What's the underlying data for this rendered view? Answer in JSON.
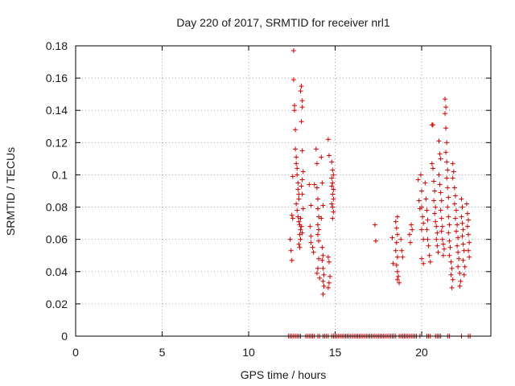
{
  "chart_data": {
    "type": "scatter",
    "title": "Day 220 of 2017, SRMTID for receiver nrl1",
    "xlabel": "GPS time / hours",
    "ylabel": "SRMTID / TECUs",
    "xlim": [
      0,
      24
    ],
    "ylim": [
      0,
      0.18
    ],
    "xticks": [
      0,
      5,
      10,
      15,
      20
    ],
    "yticks": [
      0,
      0.02,
      0.04,
      0.06,
      0.08,
      0.1,
      0.12,
      0.14,
      0.16,
      0.18
    ],
    "xtick_labels": [
      "0",
      "5",
      "10",
      "15",
      "20"
    ],
    "ytick_labels": [
      "0",
      "0.02",
      "0.04",
      "0.06",
      "0.08",
      "0.1",
      "0.12",
      "0.14",
      "0.16",
      "0.18"
    ],
    "grid": true,
    "marker": "+",
    "color": "#d00000",
    "series": [
      {
        "name": "SRMTID",
        "points": [
          [
            12.4,
            0.06
          ],
          [
            12.45,
            0.053
          ],
          [
            12.5,
            0.047
          ],
          [
            12.5,
            0.075
          ],
          [
            12.55,
            0.073
          ],
          [
            12.55,
            0.099
          ],
          [
            12.6,
            0.177
          ],
          [
            12.6,
            0.159
          ],
          [
            12.65,
            0.143
          ],
          [
            12.65,
            0.14
          ],
          [
            12.7,
            0.128
          ],
          [
            12.7,
            0.116
          ],
          [
            12.75,
            0.111
          ],
          [
            12.75,
            0.107
          ],
          [
            12.8,
            0.104
          ],
          [
            12.8,
            0.1
          ],
          [
            12.85,
            0.095
          ],
          [
            12.85,
            0.091
          ],
          [
            12.9,
            0.088
          ],
          [
            12.9,
            0.085
          ],
          [
            12.75,
            0.082
          ],
          [
            12.8,
            0.078
          ],
          [
            12.85,
            0.074
          ],
          [
            12.9,
            0.071
          ],
          [
            12.95,
            0.069
          ],
          [
            13.0,
            0.066
          ],
          [
            12.95,
            0.063
          ],
          [
            13.0,
            0.06
          ],
          [
            12.9,
            0.057
          ],
          [
            12.95,
            0.055
          ],
          [
            13.0,
            0.152
          ],
          [
            13.05,
            0.155
          ],
          [
            13.1,
            0.146
          ],
          [
            13.1,
            0.142
          ],
          [
            13.05,
            0.133
          ],
          [
            13.1,
            0.115
          ],
          [
            13.15,
            0.102
          ],
          [
            13.1,
            0.097
          ],
          [
            13.05,
            0.093
          ],
          [
            13.1,
            0.088
          ],
          [
            13.15,
            0.079
          ],
          [
            13.0,
            0.073
          ],
          [
            13.05,
            0.068
          ],
          [
            13.1,
            0.064
          ],
          [
            13.5,
            0.094
          ],
          [
            13.6,
            0.081
          ],
          [
            13.55,
            0.068
          ],
          [
            13.6,
            0.062
          ],
          [
            13.6,
            0.058
          ],
          [
            13.7,
            0.055
          ],
          [
            13.75,
            0.052
          ],
          [
            13.8,
            0.094
          ],
          [
            13.9,
            0.116
          ],
          [
            13.95,
            0.107
          ],
          [
            13.95,
            0.092
          ],
          [
            14.0,
            0.085
          ],
          [
            14.0,
            0.079
          ],
          [
            14.05,
            0.074
          ],
          [
            14.0,
            0.069
          ],
          [
            14.05,
            0.066
          ],
          [
            14.0,
            0.063
          ],
          [
            14.05,
            0.059
          ],
          [
            14.05,
            0.048
          ],
          [
            14.0,
            0.042
          ],
          [
            13.95,
            0.039
          ],
          [
            14.1,
            0.036
          ],
          [
            14.2,
            0.111
          ],
          [
            14.25,
            0.095
          ],
          [
            14.3,
            0.081
          ],
          [
            14.2,
            0.073
          ],
          [
            14.25,
            0.055
          ],
          [
            14.3,
            0.05
          ],
          [
            14.25,
            0.047
          ],
          [
            14.3,
            0.042
          ],
          [
            14.35,
            0.038
          ],
          [
            14.3,
            0.034
          ],
          [
            14.35,
            0.031
          ],
          [
            14.3,
            0.026
          ],
          [
            14.6,
            0.122
          ],
          [
            14.65,
            0.112
          ],
          [
            14.6,
            0.049
          ],
          [
            14.65,
            0.046
          ],
          [
            14.7,
            0.037
          ],
          [
            14.65,
            0.033
          ],
          [
            14.6,
            0.03
          ],
          [
            14.8,
            0.108
          ],
          [
            14.85,
            0.103
          ],
          [
            14.8,
            0.098
          ],
          [
            14.85,
            0.095
          ],
          [
            14.9,
            0.091
          ],
          [
            14.85,
            0.088
          ],
          [
            14.9,
            0.085
          ],
          [
            14.8,
            0.082
          ],
          [
            14.85,
            0.08
          ],
          [
            14.9,
            0.077
          ],
          [
            14.8,
            0.093
          ],
          [
            14.9,
            0.1
          ],
          [
            14.85,
            0.073
          ],
          [
            17.3,
            0.069
          ],
          [
            17.35,
            0.059
          ],
          [
            18.3,
            0.061
          ],
          [
            18.35,
            0.045
          ],
          [
            18.5,
            0.071
          ],
          [
            18.55,
            0.067
          ],
          [
            18.6,
            0.074
          ],
          [
            18.6,
            0.063
          ],
          [
            18.55,
            0.058
          ],
          [
            18.5,
            0.053
          ],
          [
            18.6,
            0.049
          ],
          [
            18.55,
            0.044
          ],
          [
            18.6,
            0.04
          ],
          [
            18.65,
            0.037
          ],
          [
            18.6,
            0.035
          ],
          [
            18.7,
            0.033
          ],
          [
            18.8,
            0.06
          ],
          [
            18.85,
            0.053
          ],
          [
            18.9,
            0.049
          ],
          [
            19.3,
            0.063
          ],
          [
            19.35,
            0.058
          ],
          [
            19.4,
            0.069
          ],
          [
            19.45,
            0.066
          ],
          [
            19.8,
            0.097
          ],
          [
            19.85,
            0.084
          ],
          [
            19.9,
            0.079
          ],
          [
            19.95,
            0.1
          ],
          [
            20.0,
            0.09
          ],
          [
            20.0,
            0.08
          ],
          [
            20.05,
            0.074
          ],
          [
            20.1,
            0.07
          ],
          [
            20.0,
            0.066
          ],
          [
            20.1,
            0.06
          ],
          [
            20.0,
            0.048
          ],
          [
            20.1,
            0.045
          ],
          [
            20.2,
            0.095
          ],
          [
            20.25,
            0.085
          ],
          [
            20.3,
            0.078
          ],
          [
            20.35,
            0.072
          ],
          [
            20.3,
            0.066
          ],
          [
            20.35,
            0.06
          ],
          [
            20.4,
            0.056
          ],
          [
            20.45,
            0.05
          ],
          [
            20.5,
            0.046
          ],
          [
            20.6,
            0.131
          ],
          [
            20.65,
            0.131
          ],
          [
            20.6,
            0.107
          ],
          [
            20.65,
            0.104
          ],
          [
            20.7,
            0.096
          ],
          [
            20.75,
            0.09
          ],
          [
            20.7,
            0.084
          ],
          [
            20.8,
            0.08
          ],
          [
            20.75,
            0.076
          ],
          [
            20.8,
            0.071
          ],
          [
            20.85,
            0.068
          ],
          [
            20.9,
            0.064
          ],
          [
            20.85,
            0.06
          ],
          [
            20.9,
            0.056
          ],
          [
            20.95,
            0.052
          ],
          [
            21.0,
            0.121
          ],
          [
            21.05,
            0.113
          ],
          [
            21.1,
            0.11
          ],
          [
            21.0,
            0.1
          ],
          [
            21.05,
            0.094
          ],
          [
            21.1,
            0.089
          ],
          [
            21.15,
            0.084
          ],
          [
            21.1,
            0.078
          ],
          [
            21.15,
            0.073
          ],
          [
            21.2,
            0.068
          ],
          [
            21.15,
            0.065
          ],
          [
            21.2,
            0.06
          ],
          [
            21.25,
            0.057
          ],
          [
            21.3,
            0.054
          ],
          [
            21.25,
            0.05
          ],
          [
            21.35,
            0.147
          ],
          [
            21.4,
            0.142
          ],
          [
            21.35,
            0.138
          ],
          [
            21.4,
            0.129
          ],
          [
            21.45,
            0.12
          ],
          [
            21.4,
            0.114
          ],
          [
            21.45,
            0.108
          ],
          [
            21.5,
            0.103
          ],
          [
            21.45,
            0.098
          ],
          [
            21.5,
            0.092
          ],
          [
            21.55,
            0.086
          ],
          [
            21.5,
            0.08
          ],
          [
            21.55,
            0.074
          ],
          [
            21.6,
            0.069
          ],
          [
            21.55,
            0.064
          ],
          [
            21.6,
            0.059
          ],
          [
            21.65,
            0.055
          ],
          [
            21.6,
            0.05
          ],
          [
            21.7,
            0.046
          ],
          [
            21.75,
            0.042
          ],
          [
            21.7,
            0.038
          ],
          [
            21.8,
            0.035
          ],
          [
            21.75,
            0.03
          ],
          [
            21.8,
            0.107
          ],
          [
            21.85,
            0.102
          ],
          [
            21.8,
            0.098
          ],
          [
            21.9,
            0.092
          ],
          [
            21.95,
            0.087
          ],
          [
            21.9,
            0.082
          ],
          [
            22.0,
            0.078
          ],
          [
            21.95,
            0.073
          ],
          [
            22.05,
            0.069
          ],
          [
            22.0,
            0.065
          ],
          [
            22.1,
            0.061
          ],
          [
            22.05,
            0.056
          ],
          [
            22.1,
            0.052
          ],
          [
            22.15,
            0.048
          ],
          [
            22.1,
            0.043
          ],
          [
            22.2,
            0.039
          ],
          [
            22.25,
            0.034
          ],
          [
            22.2,
            0.031
          ],
          [
            22.3,
            0.085
          ],
          [
            22.35,
            0.08
          ],
          [
            22.3,
            0.074
          ],
          [
            22.35,
            0.07
          ],
          [
            22.4,
            0.066
          ],
          [
            22.35,
            0.062
          ],
          [
            22.4,
            0.057
          ],
          [
            22.45,
            0.053
          ],
          [
            22.4,
            0.047
          ],
          [
            22.5,
            0.043
          ],
          [
            22.45,
            0.038
          ],
          [
            22.6,
            0.082
          ],
          [
            22.65,
            0.076
          ],
          [
            22.7,
            0.072
          ],
          [
            22.65,
            0.068
          ],
          [
            22.7,
            0.063
          ],
          [
            22.75,
            0.058
          ],
          [
            22.7,
            0.053
          ],
          [
            22.75,
            0.049
          ],
          [
            12.3,
            0
          ],
          [
            12.4,
            0
          ],
          [
            12.5,
            0
          ],
          [
            12.6,
            0
          ],
          [
            12.7,
            0
          ],
          [
            12.8,
            0
          ],
          [
            12.9,
            0
          ],
          [
            13.0,
            0
          ],
          [
            13.3,
            0
          ],
          [
            13.4,
            0
          ],
          [
            13.5,
            0
          ],
          [
            13.6,
            0
          ],
          [
            13.7,
            0
          ],
          [
            13.8,
            0
          ],
          [
            14.0,
            0
          ],
          [
            14.1,
            0
          ],
          [
            14.3,
            0
          ],
          [
            14.4,
            0
          ],
          [
            14.5,
            0
          ],
          [
            14.6,
            0
          ],
          [
            14.8,
            0
          ],
          [
            14.9,
            0
          ],
          [
            15.0,
            0
          ],
          [
            15.1,
            0
          ],
          [
            15.2,
            0
          ],
          [
            15.3,
            0
          ],
          [
            15.4,
            0
          ],
          [
            15.5,
            0
          ],
          [
            15.6,
            0
          ],
          [
            15.7,
            0
          ],
          [
            15.8,
            0
          ],
          [
            15.9,
            0
          ],
          [
            16.0,
            0
          ],
          [
            16.1,
            0
          ],
          [
            16.2,
            0
          ],
          [
            16.3,
            0
          ],
          [
            16.4,
            0
          ],
          [
            16.5,
            0
          ],
          [
            16.6,
            0
          ],
          [
            16.7,
            0
          ],
          [
            16.8,
            0
          ],
          [
            16.9,
            0
          ],
          [
            17.0,
            0
          ],
          [
            17.1,
            0
          ],
          [
            17.2,
            0
          ],
          [
            17.3,
            0
          ],
          [
            17.4,
            0
          ],
          [
            17.5,
            0
          ],
          [
            17.6,
            0
          ],
          [
            17.7,
            0
          ],
          [
            17.8,
            0
          ],
          [
            17.9,
            0
          ],
          [
            18.0,
            0
          ],
          [
            18.1,
            0
          ],
          [
            18.2,
            0
          ],
          [
            18.3,
            0
          ],
          [
            18.4,
            0
          ],
          [
            18.5,
            0
          ],
          [
            18.7,
            0
          ],
          [
            18.8,
            0
          ],
          [
            18.9,
            0
          ],
          [
            19.0,
            0
          ],
          [
            19.1,
            0
          ],
          [
            19.2,
            0
          ],
          [
            19.3,
            0
          ],
          [
            19.4,
            0
          ],
          [
            19.5,
            0
          ],
          [
            19.6,
            0
          ],
          [
            19.7,
            0
          ],
          [
            19.9,
            0
          ],
          [
            20.3,
            0
          ],
          [
            20.4,
            0
          ],
          [
            20.5,
            0
          ],
          [
            20.8,
            0
          ],
          [
            20.9,
            0
          ],
          [
            21.0,
            0
          ],
          [
            21.1,
            0
          ],
          [
            21.5,
            0
          ],
          [
            21.6,
            0
          ],
          [
            22.3,
            0
          ],
          [
            22.7,
            0
          ],
          [
            22.8,
            0
          ]
        ]
      }
    ]
  }
}
